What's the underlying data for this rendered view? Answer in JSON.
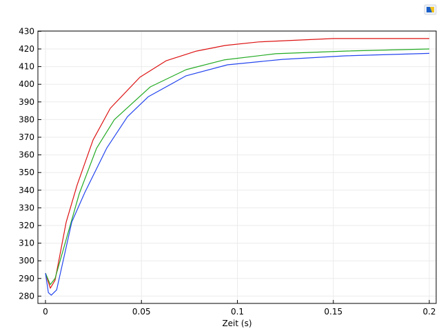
{
  "toolbar": {
    "logo_icon": "comsol-logo-icon"
  },
  "chart_data": {
    "type": "line",
    "title": "",
    "xlabel": "Zeit (s)",
    "ylabel": "",
    "xlim": [
      -0.004,
      0.204
    ],
    "ylim": [
      276,
      430
    ],
    "grid": true,
    "xticks": [
      0,
      0.05,
      0.1,
      0.15,
      0.2
    ],
    "xtick_labels": [
      "0",
      "0.05",
      "0.1",
      "0.15",
      "0.2"
    ],
    "yticks": [
      280,
      290,
      300,
      310,
      320,
      330,
      340,
      350,
      360,
      370,
      380,
      390,
      400,
      410,
      420,
      430
    ],
    "ytick_labels": [
      "280",
      "290",
      "300",
      "310",
      "320",
      "330",
      "340",
      "350",
      "360",
      "370",
      "380",
      "390",
      "400",
      "410",
      "420",
      "430"
    ],
    "series": [
      {
        "color": "#dd1111",
        "x": [
          0,
          0.0025,
          0.005,
          0.0108,
          0.0165,
          0.0248,
          0.0338,
          0.0492,
          0.0628,
          0.0786,
          0.0937,
          0.111,
          0.15,
          0.2
        ],
        "y": [
          293,
          284.5,
          289,
          322,
          343,
          368.5,
          386.4,
          404,
          413.3,
          418.8,
          422,
          424,
          425.9,
          425.9
        ]
      },
      {
        "color": "#22aa22",
        "x": [
          0,
          0.0025,
          0.005,
          0.0176,
          0.0266,
          0.0359,
          0.0546,
          0.0733,
          0.093,
          0.12,
          0.156,
          0.2
        ],
        "y": [
          293,
          286.5,
          290,
          338,
          363.7,
          380,
          398.5,
          408.3,
          413.8,
          417.3,
          418.8,
          420
        ]
      },
      {
        "color": "#2244ee",
        "x": [
          0,
          0.0015,
          0.003,
          0.0058,
          0.0137,
          0.0205,
          0.032,
          0.0427,
          0.0535,
          0.0733,
          0.0948,
          0.1235,
          0.156,
          0.2
        ],
        "y": [
          293,
          282,
          280.5,
          283.5,
          322,
          338.7,
          364,
          381.6,
          392.9,
          404.8,
          411,
          414.1,
          416.1,
          417.5
        ]
      }
    ]
  }
}
